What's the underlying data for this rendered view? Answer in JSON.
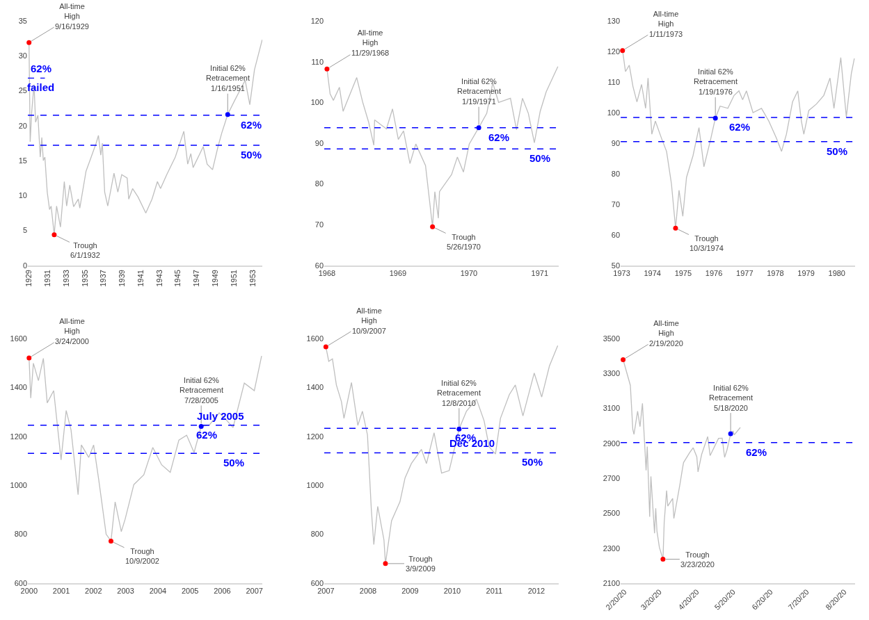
{
  "chart_data": [
    {
      "type": "line",
      "xlim": [
        "1929-08",
        "1954-10"
      ],
      "xticks": [
        {
          "value": "1929-09-16",
          "label": "1929"
        },
        {
          "value": "1931-09-16",
          "label": "1931"
        },
        {
          "value": "1933-09-16",
          "label": "1933"
        },
        {
          "value": "1935-09-16",
          "label": "1935"
        },
        {
          "value": "1937-09-16",
          "label": "1937"
        },
        {
          "value": "1939-09-16",
          "label": "1939"
        },
        {
          "value": "1941-09-16",
          "label": "1941"
        },
        {
          "value": "1943-09-16",
          "label": "1943"
        },
        {
          "value": "1945-09-16",
          "label": "1945"
        },
        {
          "value": "1947-09-16",
          "label": "1947"
        },
        {
          "value": "1949-09-16",
          "label": "1949"
        },
        {
          "value": "1951-09-16",
          "label": "1951"
        },
        {
          "value": "1953-09-16",
          "label": "1953"
        }
      ],
      "ylim": [
        0,
        35
      ],
      "yticks": [
        0,
        5,
        10,
        15,
        20,
        25,
        30,
        35
      ],
      "series": [
        {
          "color": "#bfbfbf",
          "x": [
            "1929-09-16",
            "1929-11",
            "1930-01",
            "1930-04",
            "1930-06",
            "1930-09",
            "1930-12",
            "1931-02",
            "1931-04",
            "1931-06",
            "1931-09",
            "1931-12",
            "1932-02",
            "1932-06-01",
            "1932-09",
            "1933-02",
            "1933-07",
            "1933-10",
            "1934-02",
            "1934-07",
            "1935-01",
            "1935-03",
            "1935-11",
            "1936-04",
            "1936-12",
            "1937-03",
            "1937-06",
            "1937-08",
            "1937-11",
            "1938-03",
            "1938-11",
            "1939-04",
            "1939-09",
            "1940-04",
            "1940-06",
            "1940-11",
            "1941-06",
            "1942-04",
            "1942-12",
            "1943-07",
            "1943-11",
            "1944-07",
            "1945-06",
            "1946-05",
            "1946-10",
            "1947-02",
            "1947-05",
            "1948-06",
            "1948-11",
            "1949-06",
            "1950-01",
            "1950-06",
            "1951-01-16",
            "1951-10",
            "1952-12",
            "1953-06",
            "1953-12",
            "1954-10"
          ],
          "values": [
            31.9,
            17.7,
            22,
            25.9,
            20.5,
            21.5,
            15.5,
            18.3,
            15,
            15.5,
            10.5,
            8,
            8.5,
            4.4,
            8.5,
            5.5,
            12,
            8.5,
            11.5,
            8.4,
            9.5,
            8.2,
            13.5,
            15,
            17.5,
            18.6,
            15.8,
            17.5,
            10.5,
            8.5,
            13.2,
            10.5,
            13,
            12.5,
            9.5,
            11,
            9.8,
            7.5,
            9.5,
            12,
            11,
            13,
            15.5,
            19.2,
            14.5,
            16,
            14,
            17,
            14.5,
            13.7,
            17,
            19,
            21.6,
            23.5,
            26.5,
            23,
            28,
            32.3
          ]
        },
        {
          "type": "line",
          "color": "#0000ff",
          "line_style": "dashed",
          "x": [
            "1929-08",
            "1931-06"
          ],
          "values": [
            26.8,
            26.8
          ]
        },
        {
          "type": "scatter",
          "marker": "circle",
          "x": [
            "1929-09-16",
            "1932-06-01",
            "1951-01-16"
          ],
          "values": [
            31.9,
            4.4,
            21.6
          ],
          "colors": [
            "#ff0000",
            "#ff0000",
            "#0000ff"
          ]
        }
      ],
      "ref_lines": [
        {
          "axis": "y",
          "value": 21.5,
          "color": "#0000ff",
          "line_style": "dashed"
        },
        {
          "axis": "y",
          "value": 17.2,
          "color": "#0000ff",
          "line_style": "dashed"
        }
      ],
      "annotations": [
        {
          "text": "All-time\nHigh\n9/16/1929",
          "x": "1929-09-16",
          "y": 31.9
        },
        {
          "text": "Trough\n6/1/1932",
          "x": "1932-06-01",
          "y": 4.4
        },
        {
          "text": "Initial 62%\nRetracement\n1/16/1951",
          "x": "1951-01-16",
          "y": 21.6
        },
        {
          "text": "failed",
          "x": "1931-01",
          "y": 26.8
        },
        {
          "text": "62%",
          "x": "1931-01",
          "y": 26.8
        },
        {
          "text": "62%",
          "x": "1953-08",
          "y": 21.5
        },
        {
          "text": "50%",
          "x": "1953-08",
          "y": 17.2
        }
      ]
    },
    {
      "type": "line",
      "xlim": [
        "1968-11-15",
        "1972-03-05"
      ],
      "xticks": [
        {
          "value": "1968-11-29",
          "label": "1968"
        },
        {
          "value": "1969-11-29",
          "label": "1969"
        },
        {
          "value": "1970-11-29",
          "label": "1970"
        },
        {
          "value": "1971-11-29",
          "label": "1971"
        }
      ],
      "ylim": [
        60,
        120
      ],
      "yticks": [
        60,
        70,
        80,
        90,
        100,
        110,
        120
      ],
      "series": [
        {
          "color": "#bfbfbf",
          "x": [
            "1968-11-29",
            "1968-12-15",
            "1969-01",
            "1969-02",
            "1969-02-20",
            "1969-03",
            "1969-05",
            "1969-06",
            "1969-07",
            "1969-07-28",
            "1969-08",
            "1969-10",
            "1969-11",
            "1969-12",
            "1969-12-28",
            "1970-01-30",
            "1970-03",
            "1970-04-20",
            "1970-05-26",
            "1970-06-07",
            "1970-06-25",
            "1970-07",
            "1970-09",
            "1970-10",
            "1970-11",
            "1970-12",
            "1971-01-19",
            "1971-03",
            "1971-04",
            "1971-05",
            "1971-07",
            "1971-08",
            "1971-09",
            "1971-10",
            "1971-11",
            "1971-12",
            "1972-01",
            "1972-03-01"
          ],
          "values": [
            108.2,
            102.1,
            100.5,
            103.7,
            97.8,
            98.9,
            106.1,
            100,
            95.2,
            89.5,
            95.7,
            93.5,
            98.4,
            90.9,
            93,
            85,
            89.8,
            84.5,
            69.5,
            78.1,
            71.6,
            78.1,
            82.3,
            86.6,
            82.9,
            89.8,
            93.8,
            97.3,
            104.8,
            100,
            101,
            93.3,
            101,
            97.3,
            90.1,
            97.8,
            102.6,
            108.8
          ]
        },
        {
          "type": "scatter",
          "marker": "circle",
          "x": [
            "1968-11-29",
            "1970-05-26",
            "1971-01-19"
          ],
          "values": [
            108.2,
            69.5,
            93.8
          ],
          "colors": [
            "#ff0000",
            "#ff0000",
            "#0000ff"
          ]
        }
      ],
      "ref_lines": [
        {
          "axis": "y",
          "value": 93.8,
          "color": "#0000ff",
          "line_style": "dashed"
        },
        {
          "axis": "y",
          "value": 88.6,
          "color": "#0000ff",
          "line_style": "dashed"
        }
      ],
      "annotations": [
        {
          "text": "All-time\nHigh\n11/29/1968",
          "x": "1968-11-29",
          "y": 108.2
        },
        {
          "text": "Trough\n5/26/1970",
          "x": "1970-05-26",
          "y": 69.5
        },
        {
          "text": "Initial 62%\nRetracement\n1/19/1971",
          "x": "1971-01-19",
          "y": 93.8
        },
        {
          "text": "62%",
          "x": "1971-05",
          "y": 93.8
        },
        {
          "text": "50%",
          "x": "1971-12",
          "y": 88.6
        }
      ]
    },
    {
      "type": "line",
      "xlim": [
        "1972-12-20",
        "1980-08-05"
      ],
      "xticks": [
        "1973",
        "1974",
        "1975",
        "1976",
        "1977",
        "1978",
        "1979",
        "1980"
      ],
      "ylim": [
        50,
        130
      ],
      "yticks": [
        50,
        60,
        70,
        80,
        90,
        100,
        110,
        120,
        130
      ],
      "series": [
        {
          "color": "#bfbfbf",
          "x": [
            "1973-01-11",
            "1973-02-15",
            "1973-04",
            "1973-05-15",
            "1973-07",
            "1973-08-25",
            "1973-10-12",
            "1973-11-10",
            "1973-12-25",
            "1974-02-05",
            "1974-04-20",
            "1974-06-18",
            "1974-08-15",
            "1974-10-03",
            "1974-11-13",
            "1974-12-28",
            "1975-02-10",
            "1975-04-28",
            "1975-07-08",
            "1975-09-05",
            "1975-11-20",
            "1976-01-19",
            "1976-03-15",
            "1976-06-15",
            "1976-08-28",
            "1976-10-25",
            "1976-12-08",
            "1977-01-22",
            "1977-04-10",
            "1977-07-20",
            "1977-10-15",
            "1978-01-15",
            "1978-03-15",
            "1978-05-12",
            "1978-07-24",
            "1978-09-24",
            "1978-11-06",
            "1978-12-05",
            "1979-02-02",
            "1979-05-04",
            "1979-07-30",
            "1979-10-12",
            "1979-11-28",
            "1980-02-17",
            "1980-04-23",
            "1980-06-21",
            "1980-07-27"
          ],
          "values": [
            120.3,
            113.4,
            115.5,
            108.5,
            103.5,
            109.2,
            101.4,
            111.3,
            92.9,
            97.2,
            91.5,
            87.3,
            76.7,
            62.2,
            74.6,
            66.1,
            78.8,
            85.9,
            95.1,
            82.3,
            90.8,
            98.2,
            102.1,
            101.4,
            105.6,
            107.1,
            104.2,
            107.1,
            100,
            101.4,
            97.2,
            91.5,
            87.3,
            92.9,
            103.5,
            107.1,
            97.2,
            92.9,
            100.7,
            102.8,
            105.6,
            111.3,
            101.4,
            118,
            98.6,
            112.7,
            117.7
          ]
        },
        {
          "type": "scatter",
          "marker": "circle",
          "x": [
            "1973-01-11",
            "1974-10-03",
            "1976-01-19"
          ],
          "values": [
            120.3,
            62.2,
            98.2
          ],
          "colors": [
            "#ff0000",
            "#ff0000",
            "#0000ff"
          ]
        }
      ],
      "ref_lines": [
        {
          "axis": "y",
          "value": 98.4,
          "color": "#0000ff",
          "line_style": "dashed"
        },
        {
          "axis": "y",
          "value": 90.5,
          "color": "#0000ff",
          "line_style": "dashed"
        }
      ],
      "annotations": [
        {
          "text": "All-time\nHigh\n1/11/1973",
          "x": "1973-01-11",
          "y": 120.3
        },
        {
          "text": "Trough\n10/3/1974",
          "x": "1974-10-03",
          "y": 62.2
        },
        {
          "text": "Initial 62%\nRetracement\n1/19/1976",
          "x": "1976-01-19",
          "y": 98.2
        },
        {
          "text": "62%",
          "x": "1976-11",
          "y": 98.4
        },
        {
          "text": "50%",
          "x": "1980-01",
          "y": 90.5
        }
      ]
    },
    {
      "type": "line",
      "xlim": [
        "2000-03-10",
        "2007-06-20"
      ],
      "xticks": [
        {
          "value": "2000-03-24",
          "label": "2000"
        },
        {
          "value": "2001-03-24",
          "label": "2001"
        },
        {
          "value": "2002-03-24",
          "label": "2002"
        },
        {
          "value": "2003-03-24",
          "label": "2003"
        },
        {
          "value": "2004-03-24",
          "label": "2004"
        },
        {
          "value": "2005-03-24",
          "label": "2005"
        },
        {
          "value": "2006-03-24",
          "label": "2006"
        },
        {
          "value": "2007-03-24",
          "label": "2007"
        }
      ],
      "ylim": [
        600,
        1600
      ],
      "yticks": [
        600,
        800,
        1000,
        1200,
        1400,
        1600
      ],
      "series": [
        {
          "color": "#bfbfbf",
          "x": [
            "2000-03-24",
            "2000-04-12",
            "2000-05-12",
            "2000-07-08",
            "2000-09-02",
            "2000-10-16",
            "2000-12-28",
            "2001-03-22",
            "2001-05-19",
            "2001-07-13",
            "2001-10-01",
            "2001-11-07",
            "2002-01-30",
            "2002-03-26",
            "2002-05-23",
            "2002-08-15",
            "2002-10-09",
            "2002-11-25",
            "2003-02-03",
            "2003-03-18",
            "2003-06-25",
            "2003-10-16",
            "2004-01-26",
            "2004-05-05",
            "2004-08-11",
            "2004-11-17",
            "2005-02-13",
            "2005-05-08",
            "2005-07-28",
            "2005-10-27",
            "2006-02-17",
            "2006-05-12",
            "2006-07-24",
            "2006-11-29",
            "2007-03-22",
            "2007-06-13"
          ],
          "values": [
            1521,
            1357,
            1499,
            1428,
            1519,
            1337,
            1387,
            1104,
            1306,
            1226,
            962,
            1165,
            1114,
            1165,
            1023,
            800,
            772,
            932,
            811,
            861,
            1003,
            1043,
            1155,
            1084,
            1053,
            1185,
            1205,
            1134,
            1241,
            1246,
            1296,
            1266,
            1236,
            1418,
            1387,
            1529
          ]
        },
        {
          "type": "scatter",
          "marker": "circle",
          "x": [
            "2000-03-24",
            "2002-10-09",
            "2005-07-28"
          ],
          "values": [
            1521,
            772,
            1241
          ],
          "colors": [
            "#ff0000",
            "#ff0000",
            "#0000ff"
          ]
        }
      ],
      "ref_lines": [
        {
          "axis": "y",
          "value": 1246,
          "color": "#0000ff",
          "line_style": "dashed"
        },
        {
          "axis": "y",
          "value": 1131,
          "color": "#0000ff",
          "line_style": "dashed"
        }
      ],
      "annotations": [
        {
          "text": "All-time\nHigh\n3/24/2000",
          "x": "2000-03-24",
          "y": 1521
        },
        {
          "text": "Trough\n10/9/2002",
          "x": "2002-10-09",
          "y": 772
        },
        {
          "text": "Initial 62%\nRetracement\n7/28/2005",
          "x": "2005-07-28",
          "y": 1241
        },
        {
          "text": "62%",
          "x": "2005-10",
          "y": 1246
        },
        {
          "text": "July 2005",
          "x": "2006-03",
          "y": 1246
        },
        {
          "text": "50%",
          "x": "2006-08",
          "y": 1131
        }
      ]
    },
    {
      "type": "line",
      "xlim": [
        "2007-09-25",
        "2013-04-20"
      ],
      "xticks": [
        {
          "value": "2007-10-09",
          "label": "2007"
        },
        {
          "value": "2008-10-09",
          "label": "2008"
        },
        {
          "value": "2009-10-09",
          "label": "2009"
        },
        {
          "value": "2010-10-09",
          "label": "2010"
        },
        {
          "value": "2011-10-09",
          "label": "2011"
        },
        {
          "value": "2012-10-09",
          "label": "2012"
        }
      ],
      "ylim": [
        600,
        1600
      ],
      "yticks": [
        600,
        800,
        1000,
        1200,
        1400,
        1600
      ],
      "series": [
        {
          "color": "#bfbfbf",
          "x": [
            "2007-10-09",
            "2007-11-03",
            "2007-12-05",
            "2008-01-08",
            "2008-02-21",
            "2008-03-14",
            "2008-05-18",
            "2008-07-12",
            "2008-08-21",
            "2008-10-04",
            "2008-11-06",
            "2008-11-28",
            "2009-01-01",
            "2009-02-24",
            "2009-03-09",
            "2009-05-01",
            "2009-07-13",
            "2009-08-26",
            "2009-10-20",
            "2010-01-15",
            "2010-02-28",
            "2010-05-05",
            "2010-07-09",
            "2010-09-13",
            "2010-12-08",
            "2011-02-10",
            "2011-05-08",
            "2011-07-13",
            "2011-08-26",
            "2011-10-20",
            "2011-12-02",
            "2012-02-17",
            "2012-04-09",
            "2012-06-14",
            "2012-09-20",
            "2012-11-24",
            "2013-01-30",
            "2013-04-12"
          ],
          "values": [
            1566,
            1507,
            1517,
            1410,
            1342,
            1274,
            1420,
            1245,
            1303,
            1206,
            904,
            758,
            914,
            777,
            680,
            855,
            933,
            1030,
            1089,
            1147,
            1089,
            1215,
            1050,
            1060,
            1230,
            1303,
            1352,
            1264,
            1157,
            1128,
            1274,
            1371,
            1410,
            1284,
            1459,
            1361,
            1488,
            1571
          ]
        },
        {
          "type": "scatter",
          "marker": "circle",
          "x": [
            "2007-10-09",
            "2009-03-09",
            "2010-12-08"
          ],
          "values": [
            1566,
            680,
            1230
          ],
          "colors": [
            "#ff0000",
            "#ff0000",
            "#0000ff"
          ]
        }
      ],
      "ref_lines": [
        {
          "axis": "y",
          "value": 1233,
          "color": "#0000ff",
          "line_style": "dashed"
        },
        {
          "axis": "y",
          "value": 1133,
          "color": "#0000ff",
          "line_style": "dashed"
        }
      ],
      "annotations": [
        {
          "text": "All-time\nHigh\n10/9/2007",
          "x": "2007-10-09",
          "y": 1566
        },
        {
          "text": "Trough\n3/9/2009",
          "x": "2009-03-09",
          "y": 680
        },
        {
          "text": "Initial 62%\nRetracement\n12/8/2010",
          "x": "2010-12-08",
          "y": 1230
        },
        {
          "text": "62%",
          "x": "2011-02",
          "y": 1233
        },
        {
          "text": "50%",
          "x": "2012-09",
          "y": 1133
        },
        {
          "text": "Dec 2010",
          "x": "2011-04",
          "y": 1133
        }
      ]
    },
    {
      "type": "line",
      "xlim": [
        "2020-02-17",
        "2020-08-29"
      ],
      "xticks": [
        {
          "value": "2020-02-20",
          "label": "2/20/20"
        },
        {
          "value": "2020-03-20",
          "label": "3/20/20"
        },
        {
          "value": "2020-04-20",
          "label": "4/20/20"
        },
        {
          "value": "2020-05-20",
          "label": "5/20/20"
        },
        {
          "value": "2020-06-20",
          "label": "6/20/20"
        },
        {
          "value": "2020-07-20",
          "label": "7/20/20"
        },
        {
          "value": "2020-08-20",
          "label": "8/20/20"
        }
      ],
      "ylim": [
        2100,
        3500
      ],
      "yticks": [
        2100,
        2300,
        2500,
        2700,
        2900,
        3100,
        3300,
        3500
      ],
      "series": [
        {
          "color": "#bfbfbf",
          "x": [
            "2020-02-19",
            "2020-02-25",
            "2020-02-27",
            "2020-02-28",
            "2020-03-02",
            "2020-03-04",
            "2020-03-06",
            "2020-03-09",
            "2020-03-10",
            "2020-03-12",
            "2020-03-13",
            "2020-03-16",
            "2020-03-17",
            "2020-03-18",
            "2020-03-20",
            "2020-03-23",
            "2020-03-24",
            "2020-03-26",
            "2020-03-27",
            "2020-03-31",
            "2020-04-01",
            "2020-04-06",
            "2020-04-08",
            "2020-04-09",
            "2020-04-14",
            "2020-04-17",
            "2020-04-20",
            "2020-04-21",
            "2020-04-24",
            "2020-04-29",
            "2020-05-01",
            "2020-05-08",
            "2020-05-11",
            "2020-05-13",
            "2020-05-15",
            "2020-05-18",
            "2020-05-20",
            "2020-05-21",
            "2020-05-26"
          ],
          "values": [
            3379,
            3232,
            2981,
            2952,
            3084,
            2996,
            3129,
            2746,
            2882,
            2480,
            2711,
            2386,
            2529,
            2398,
            2305,
            2237,
            2447,
            2630,
            2541,
            2585,
            2470,
            2664,
            2750,
            2790,
            2846,
            2875,
            2823,
            2737,
            2837,
            2939,
            2830,
            2929,
            2930,
            2820,
            2863,
            2954,
            2971,
            2949,
            2991
          ]
        },
        {
          "type": "scatter",
          "marker": "circle",
          "x": [
            "2020-02-19",
            "2020-03-23",
            "2020-05-18"
          ],
          "values": [
            3379,
            2237,
            2955
          ],
          "colors": [
            "#ff0000",
            "#ff0000",
            "#0000ff"
          ]
        }
      ],
      "ref_lines": [
        {
          "axis": "y",
          "value": 2905,
          "color": "#0000ff",
          "line_style": "dashed"
        }
      ],
      "annotations": [
        {
          "text": "All-time\nHigh\n2/19/2020",
          "x": "2020-02-19",
          "y": 3379
        },
        {
          "text": "Trough\n3/23/2020",
          "x": "2020-03-23",
          "y": 2237
        },
        {
          "text": "Initial 62%\nRetracement\n5/18/2020",
          "x": "2020-05-18",
          "y": 2955
        },
        {
          "text": "62%",
          "x": "2020-06-08",
          "y": 2905
        }
      ]
    }
  ]
}
